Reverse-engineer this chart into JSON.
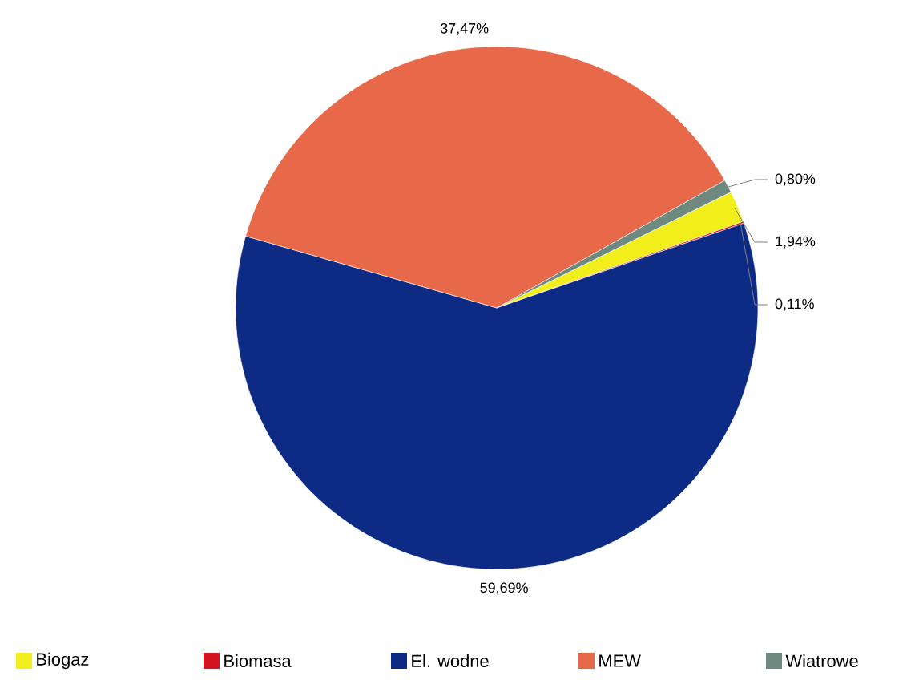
{
  "chart_data": {
    "type": "pie",
    "categories": [
      "Biogaz",
      "Biomasa",
      "El. wodne",
      "MEW",
      "Wiatrowe"
    ],
    "values": [
      1.94,
      0.11,
      59.69,
      37.47,
      0.8
    ],
    "colors": [
      "#f2ee1c",
      "#d2141e",
      "#0d2a85",
      "#e8694a",
      "#6e8a80"
    ],
    "value_labels": [
      "1,94%",
      "0,11%",
      "59,69%",
      "37,47%",
      "0,80%"
    ],
    "legend": "bottom"
  }
}
